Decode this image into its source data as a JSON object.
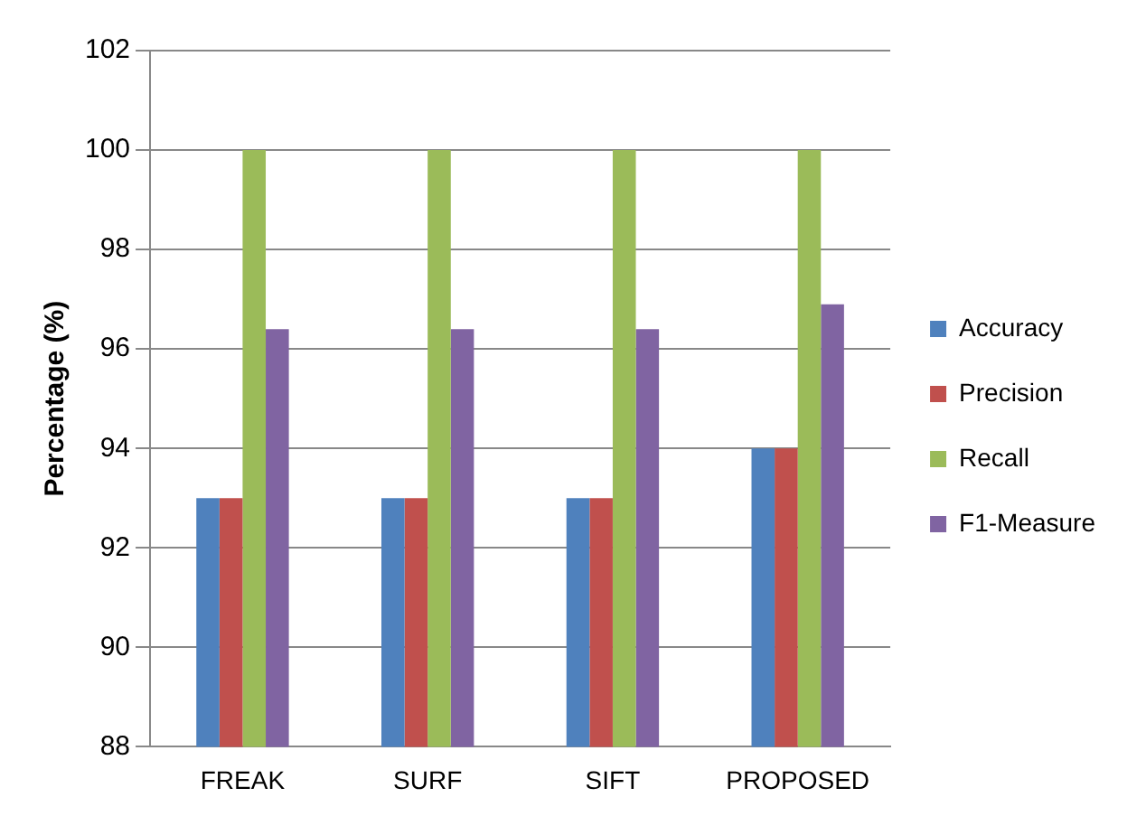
{
  "chart_data": {
    "type": "bar",
    "ylabel": "Percentage (%)",
    "categories": [
      "FREAK",
      "SURF",
      "SIFT",
      "PROPOSED"
    ],
    "series": [
      {
        "name": "Accuracy",
        "color": "#4f81bd",
        "values": [
          93,
          93,
          93,
          94
        ]
      },
      {
        "name": "Precision",
        "color": "#c0504d",
        "values": [
          93,
          93,
          93,
          94
        ]
      },
      {
        "name": "Recall",
        "color": "#9bbb59",
        "values": [
          100,
          100,
          100,
          100
        ]
      },
      {
        "name": "F1-Measure",
        "color": "#8064a2",
        "values": [
          96.4,
          96.4,
          96.4,
          96.9
        ]
      }
    ],
    "ylim": [
      88,
      102
    ],
    "yticks": [
      88,
      90,
      92,
      94,
      96,
      98,
      100,
      102
    ],
    "grid": "y",
    "legend": "right"
  }
}
